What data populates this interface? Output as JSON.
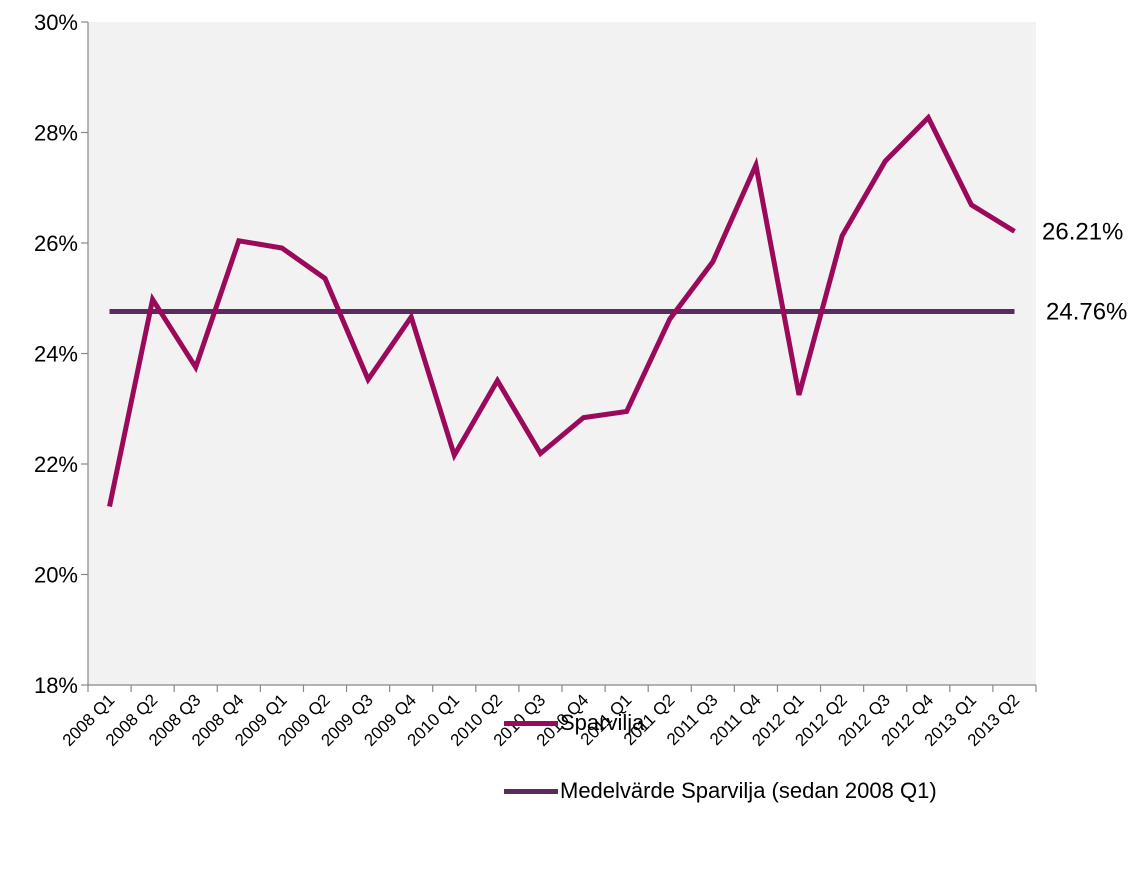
{
  "chart_data": {
    "type": "line",
    "x": [
      "2008 Q1",
      "2008 Q2",
      "2008 Q3",
      "2008 Q4",
      "2009 Q1",
      "2009 Q2",
      "2009 Q3",
      "2009 Q4",
      "2010 Q1",
      "2010 Q2",
      "2010 Q3",
      "2010 Q4",
      "2011 Q1",
      "2011 Q2",
      "2011 Q3",
      "2011 Q4",
      "2012 Q1",
      "2012 Q2",
      "2012 Q3",
      "2012 Q4",
      "2013 Q1",
      "2013 Q2"
    ],
    "series": [
      {
        "name": "Sparvilja",
        "color": "#9b0a5a",
        "values": [
          21.23,
          24.98,
          23.75,
          26.04,
          25.91,
          25.36,
          23.53,
          24.66,
          22.16,
          23.51,
          22.19,
          22.84,
          22.95,
          24.62,
          25.66,
          27.41,
          23.25,
          26.13,
          27.48,
          28.27,
          26.69,
          26.21
        ]
      },
      {
        "name": "Medelvärde Sparvilja (sedan 2008 Q1)",
        "color": "#5b2a5e",
        "values": [
          24.76,
          24.76,
          24.76,
          24.76,
          24.76,
          24.76,
          24.76,
          24.76,
          24.76,
          24.76,
          24.76,
          24.76,
          24.76,
          24.76,
          24.76,
          24.76,
          24.76,
          24.76,
          24.76,
          24.76,
          24.76,
          24.76
        ]
      }
    ],
    "end_labels": [
      "26.21%",
      "24.76%"
    ],
    "ylim": [
      18,
      30
    ],
    "yticks": [
      "18%",
      "20%",
      "22%",
      "24%",
      "26%",
      "28%",
      "30%"
    ],
    "ytick_values": [
      18,
      20,
      22,
      24,
      26,
      28,
      30
    ],
    "plot_background": "#f2f2f2",
    "grid": false,
    "legend_position": "bottom",
    "title": "",
    "xlabel": "",
    "ylabel": ""
  }
}
